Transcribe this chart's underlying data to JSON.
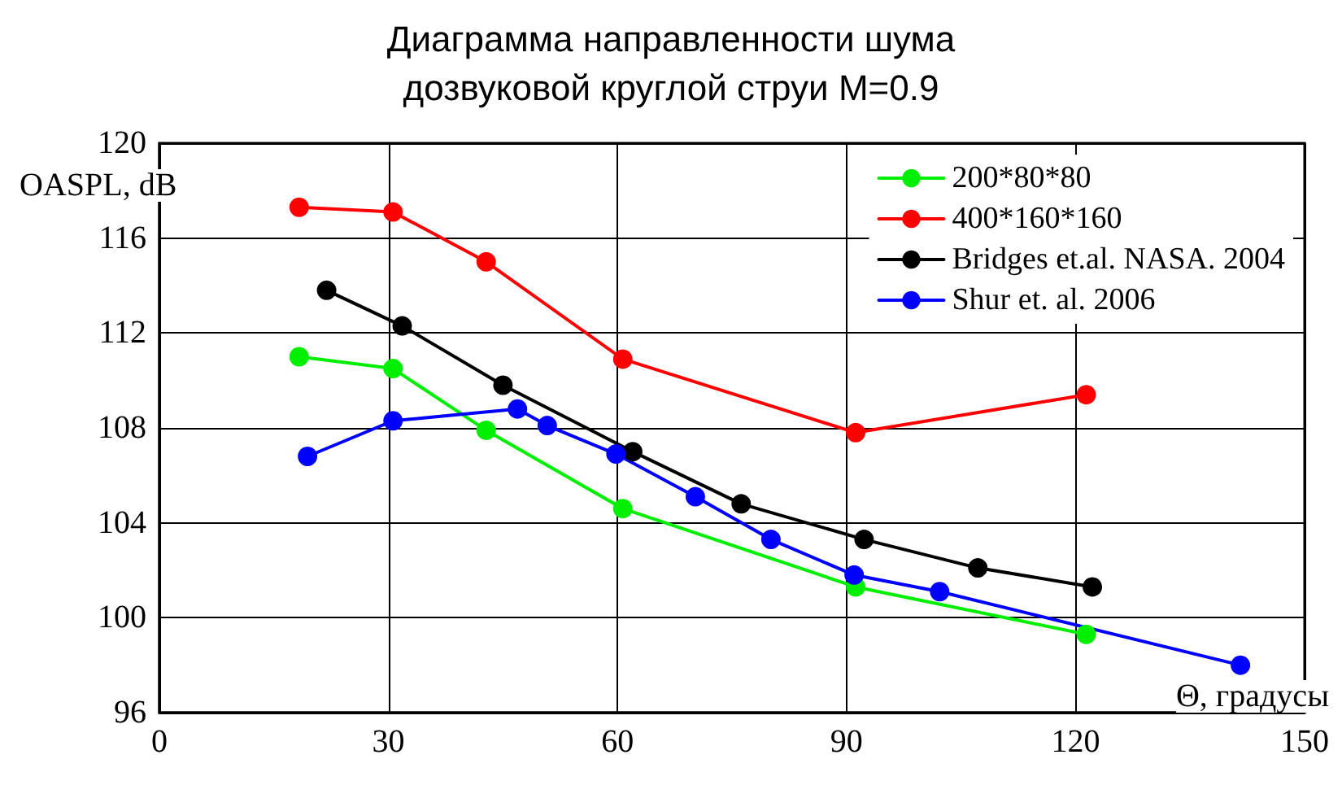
{
  "chart_data": {
    "type": "line",
    "title": "Диаграмма направленности шума\nдозвуковой круглой струи M=0.9",
    "xlabel": "Θ, градусы",
    "ylabel": "OASPL, dB",
    "xlim": [
      0,
      150
    ],
    "xticks": [
      0,
      30,
      60,
      90,
      120,
      150
    ],
    "ylim": [
      96,
      120
    ],
    "yticks": [
      96,
      100,
      104,
      108,
      112,
      116,
      120
    ],
    "grid": true,
    "legend": "top right",
    "marker": "circle",
    "line_style": "solid",
    "series": [
      {
        "name": "200*80*80",
        "color": "#00ee00",
        "x": [
          18.3,
          30.6,
          42.8,
          60.7,
          91.2,
          121.4
        ],
        "values": [
          111.0,
          110.5,
          107.9,
          104.6,
          101.3,
          99.3
        ]
      },
      {
        "name": "400*160*160",
        "color": "#ff0000",
        "x": [
          18.3,
          30.6,
          42.8,
          60.7,
          91.2,
          121.4
        ],
        "values": [
          117.3,
          117.1,
          115.0,
          110.9,
          107.8,
          109.4
        ]
      },
      {
        "name": "Bridges et.al. NASA. 2004",
        "color": "#000000",
        "x": [
          21.9,
          31.8,
          45,
          62,
          76.2,
          92.3,
          107.2,
          122.2
        ],
        "values": [
          113.8,
          112.3,
          109.8,
          107.0,
          104.8,
          103.3,
          102.1,
          101.3
        ]
      },
      {
        "name": "Shur et. al. 2006",
        "color": "#0000ff",
        "x": [
          19.4,
          30.6,
          46.9,
          50.8,
          59.8,
          70.2,
          80.1,
          91,
          102.2,
          141.6
        ],
        "values": [
          106.8,
          108.3,
          108.8,
          108.1,
          106.9,
          105.1,
          103.3,
          101.8,
          101.1,
          98.0
        ]
      }
    ]
  }
}
